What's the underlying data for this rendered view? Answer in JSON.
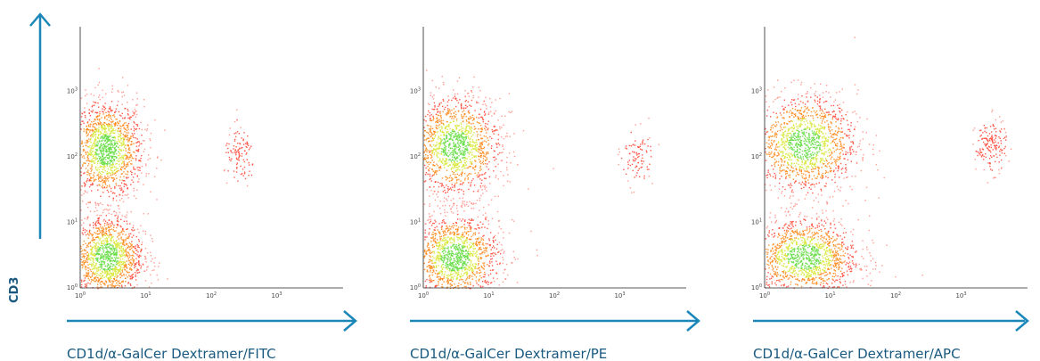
{
  "y_axis_label": "CD3",
  "accent_color": "#1a87b8",
  "colors": {
    "low_density": "#ff4a3a",
    "mid_density": "#ff8a1c",
    "high_density": "#d8e83a",
    "peak_density": "#66dd44"
  },
  "chart_data": [
    {
      "type": "scatter",
      "xlabel": "CD1d/α-GalCer Dextramer/FITC",
      "ylabel": "CD3",
      "x_scale": "log",
      "y_scale": "log",
      "xlim": [
        1,
        10000
      ],
      "ylim": [
        1,
        10000
      ],
      "x_ticks": [
        {
          "base": "10",
          "exp": "0",
          "value": 1
        },
        {
          "base": "10",
          "exp": "1",
          "value": 10
        },
        {
          "base": "10",
          "exp": "2",
          "value": 100
        },
        {
          "base": "10",
          "exp": "3",
          "value": 1000
        }
      ],
      "y_ticks": [
        {
          "base": "10",
          "exp": "0",
          "value": 1
        },
        {
          "base": "10",
          "exp": "1",
          "value": 10
        },
        {
          "base": "10",
          "exp": "2",
          "value": 100
        },
        {
          "base": "10",
          "exp": "3",
          "value": 1000
        }
      ],
      "populations": [
        {
          "x_center": 2.5,
          "y_center": 130,
          "spread_x": 0.28,
          "spread_y": 0.38,
          "relative_density": 1.0
        },
        {
          "x_center": 2.5,
          "y_center": 3,
          "spread_x": 0.28,
          "spread_y": 0.33,
          "relative_density": 1.0
        },
        {
          "x_center": 270,
          "y_center": 100,
          "spread_x": 0.12,
          "spread_y": 0.22,
          "relative_density": 0.08
        }
      ]
    },
    {
      "type": "scatter",
      "xlabel": "CD1d/α-GalCer Dextramer/PE",
      "ylabel": "CD3",
      "x_scale": "log",
      "y_scale": "log",
      "xlim": [
        1,
        10000
      ],
      "ylim": [
        1,
        10000
      ],
      "x_ticks": [
        {
          "base": "10",
          "exp": "0",
          "value": 1
        },
        {
          "base": "10",
          "exp": "1",
          "value": 10
        },
        {
          "base": "10",
          "exp": "2",
          "value": 100
        },
        {
          "base": "10",
          "exp": "3",
          "value": 1000
        }
      ],
      "y_ticks": [
        {
          "base": "10",
          "exp": "0",
          "value": 1
        },
        {
          "base": "10",
          "exp": "1",
          "value": 10
        },
        {
          "base": "10",
          "exp": "2",
          "value": 100
        },
        {
          "base": "10",
          "exp": "3",
          "value": 1000
        }
      ],
      "populations": [
        {
          "x_center": 3,
          "y_center": 150,
          "spread_x": 0.35,
          "spread_y": 0.38,
          "relative_density": 1.0
        },
        {
          "x_center": 3,
          "y_center": 3,
          "spread_x": 0.35,
          "spread_y": 0.33,
          "relative_density": 1.0
        },
        {
          "x_center": 1800,
          "y_center": 100,
          "spread_x": 0.12,
          "spread_y": 0.22,
          "relative_density": 0.07
        }
      ]
    },
    {
      "type": "scatter",
      "xlabel": "CD1d/α-GalCer Dextramer/APC",
      "ylabel": "CD3",
      "x_scale": "log",
      "y_scale": "log",
      "xlim": [
        1,
        10000
      ],
      "ylim": [
        1,
        10000
      ],
      "x_ticks": [
        {
          "base": "10",
          "exp": "0",
          "value": 1
        },
        {
          "base": "10",
          "exp": "1",
          "value": 10
        },
        {
          "base": "10",
          "exp": "2",
          "value": 100
        },
        {
          "base": "10",
          "exp": "3",
          "value": 1000
        }
      ],
      "y_ticks": [
        {
          "base": "10",
          "exp": "0",
          "value": 1
        },
        {
          "base": "10",
          "exp": "1",
          "value": 10
        },
        {
          "base": "10",
          "exp": "2",
          "value": 100
        },
        {
          "base": "10",
          "exp": "3",
          "value": 1000
        }
      ],
      "populations": [
        {
          "x_center": 4,
          "y_center": 160,
          "spread_x": 0.4,
          "spread_y": 0.38,
          "relative_density": 1.0
        },
        {
          "x_center": 4,
          "y_center": 3,
          "spread_x": 0.42,
          "spread_y": 0.3,
          "relative_density": 1.0
        },
        {
          "x_center": 2800,
          "y_center": 150,
          "spread_x": 0.12,
          "spread_y": 0.2,
          "relative_density": 0.12
        }
      ]
    }
  ]
}
